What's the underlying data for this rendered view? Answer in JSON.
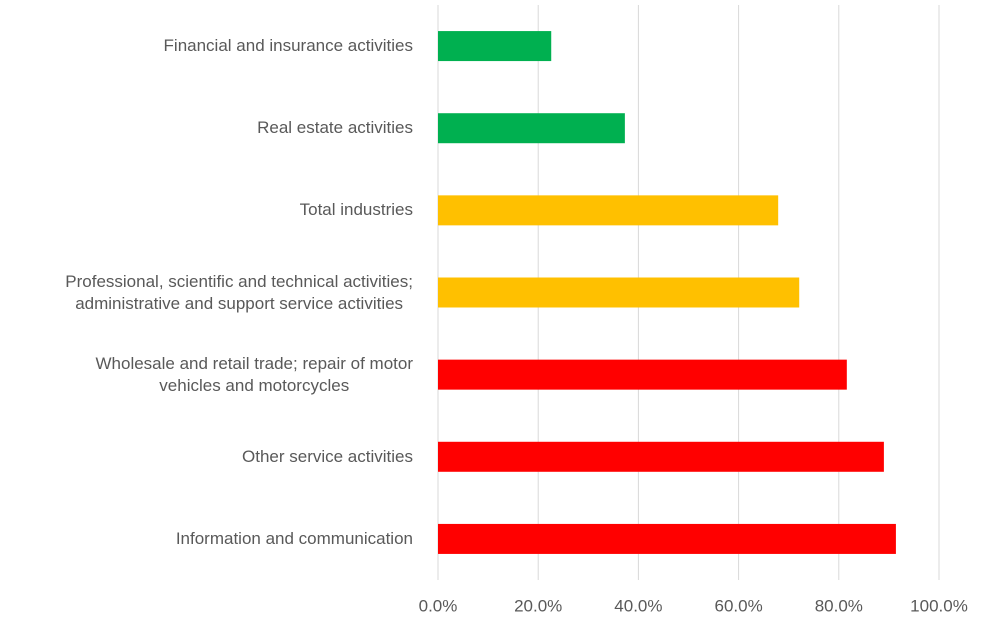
{
  "chart_data": {
    "type": "barh",
    "categories": [
      "Financial and insurance activities",
      "Real estate activities",
      "Total industries",
      "Professional, scientific and technical activities;\nadministrative and support service activities",
      "Wholesale and retail trade; repair of motor\nvehicles and motorcycles",
      "Other service activities",
      "Information and communication"
    ],
    "values": [
      22.6,
      37.3,
      67.9,
      72.1,
      81.6,
      89.0,
      91.4
    ],
    "colors": [
      "#00b050",
      "#00b050",
      "#ffc000",
      "#ffc000",
      "#ff0000",
      "#ff0000",
      "#ff0000"
    ],
    "xlim": [
      0,
      100
    ],
    "xticks": [
      {
        "value": 0,
        "label": "0.0%"
      },
      {
        "value": 20,
        "label": "20.0%"
      },
      {
        "value": 40,
        "label": "40.0%"
      },
      {
        "value": 60,
        "label": "60.0%"
      },
      {
        "value": 80,
        "label": "80.0%"
      },
      {
        "value": 100,
        "label": "100.0%"
      }
    ],
    "grid": true
  }
}
